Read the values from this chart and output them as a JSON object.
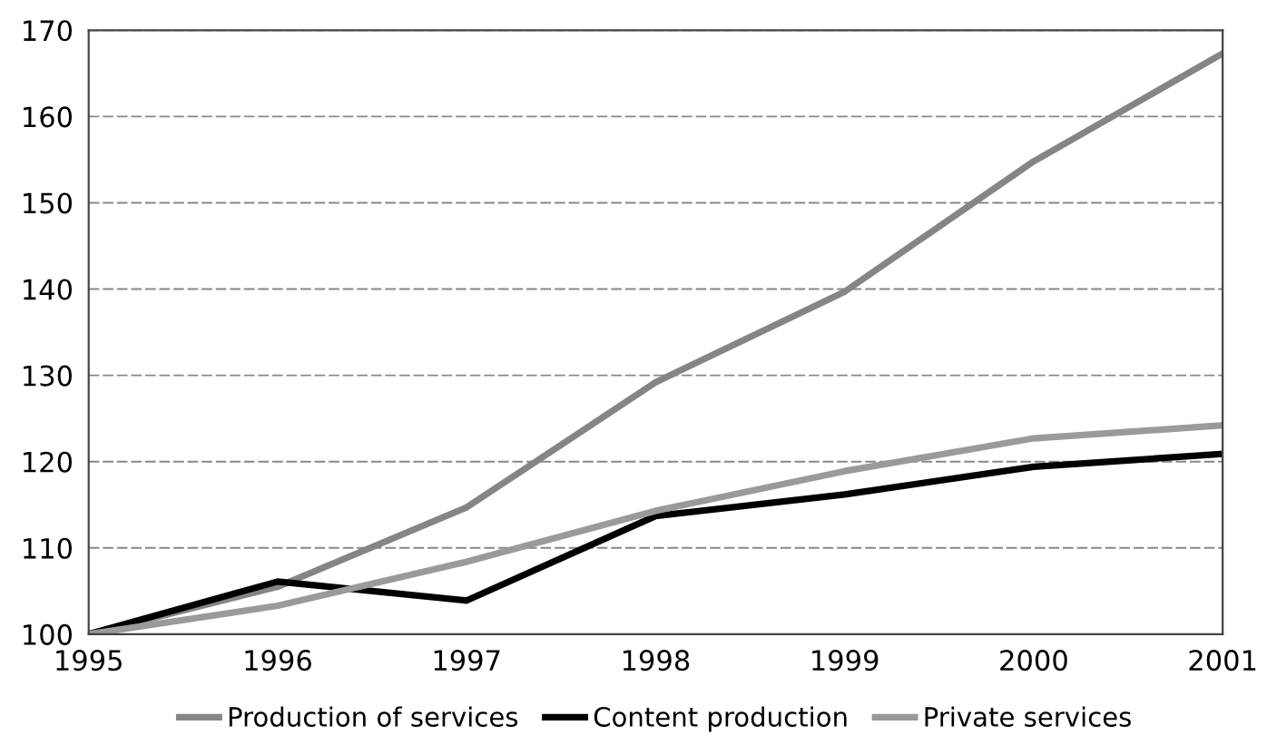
{
  "chart_data": {
    "type": "line",
    "x": [
      1995,
      1996,
      1997,
      1998,
      1999,
      2000,
      2001
    ],
    "series": [
      {
        "name": "Production of services",
        "color": "#858585",
        "values": [
          100,
          105.5,
          114.7,
          129.2,
          139.7,
          154.8,
          167.3
        ]
      },
      {
        "name": "Content production",
        "color": "#000000",
        "values": [
          100,
          106.1,
          103.9,
          113.7,
          116.2,
          119.4,
          120.9
        ]
      },
      {
        "name": "Private services",
        "color": "#9a9a9a",
        "values": [
          100,
          103.3,
          108.4,
          114.3,
          118.9,
          122.7,
          124.2
        ]
      }
    ],
    "xlim": [
      1995,
      2001
    ],
    "xticks": [
      1995,
      1996,
      1997,
      1998,
      1999,
      2000,
      2001
    ],
    "ylim": [
      100,
      170
    ],
    "yticks": [
      100,
      110,
      120,
      130,
      140,
      150,
      160,
      170
    ],
    "grid": "y",
    "legend": "bottom",
    "marker": "none",
    "line_style": "solid"
  }
}
